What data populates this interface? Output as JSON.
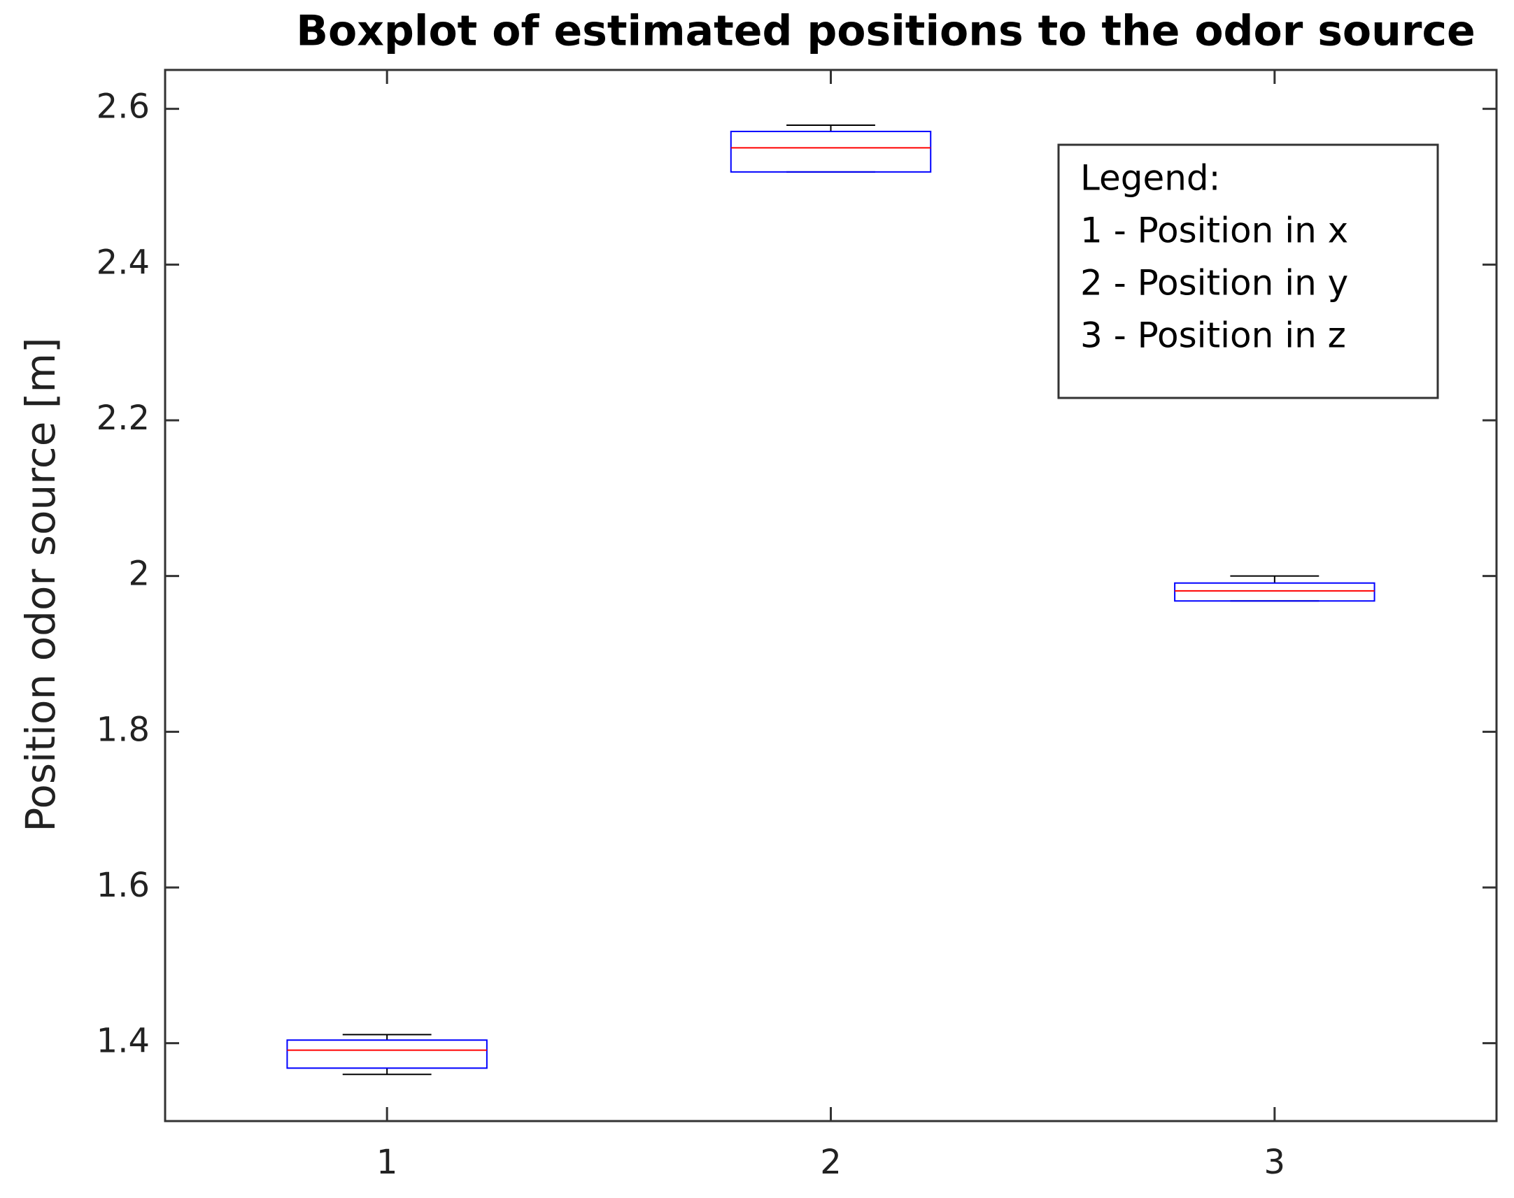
{
  "chart_data": {
    "type": "box",
    "title": "Boxplot of estimated positions to the odor source",
    "y_label": "Position odor source [m]",
    "x": [
      1,
      2,
      3
    ],
    "xlim": [
      0.5,
      3.5
    ],
    "xticks": [
      1,
      2,
      3
    ],
    "ylim": [
      1.3,
      2.65
    ],
    "yticks": [
      1.4,
      1.6,
      1.8,
      2,
      2.2,
      2.4,
      2.6
    ],
    "whisker_low": [
      1.36,
      2.519,
      1.968
    ],
    "q1": [
      1.368,
      2.519,
      1.968
    ],
    "median": [
      1.391,
      2.55,
      1.981
    ],
    "q3": [
      1.404,
      2.571,
      1.991
    ],
    "whisker_high": [
      1.411,
      2.579,
      2.0
    ],
    "box_color": "#0000ff",
    "median_color": "#ff0000",
    "whisker_color": "#000000",
    "legend_text": [
      "Legend:",
      "1 - Position in x",
      "2 - Position in y",
      "3 - Position in z"
    ]
  }
}
